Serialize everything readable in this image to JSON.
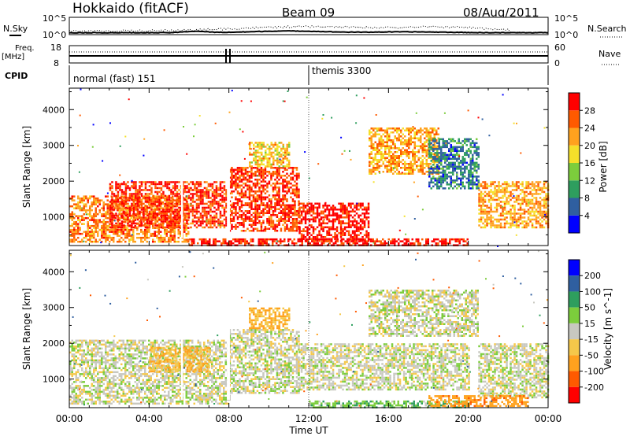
{
  "header": {
    "title": "Hokkaido (fitACF)",
    "beam": "Beam 09",
    "date": "08/Aug/2011"
  },
  "panels": {
    "nsky": {
      "left_label": "N.Sky",
      "right_label": "N.Search",
      "left_ticks": [
        "10^5",
        "10^0"
      ],
      "right_ticks": [
        "10^5",
        "10^0"
      ]
    },
    "freq": {
      "left_label_1": "Freq.",
      "left_label_2": "[MHz]",
      "right_label": "Nave",
      "left_ticks": [
        "18",
        "8"
      ],
      "right_ticks": [
        "60",
        "0"
      ]
    },
    "cpid": {
      "left_label": "CPID",
      "segments": [
        {
          "text": "normal (fast) 151",
          "start_h": 0.0
        },
        {
          "text": "themis 3300",
          "start_h": 12.0
        }
      ]
    }
  },
  "colors": {
    "power": [
      "#0000ff",
      "#2f5fa0",
      "#2e9e5e",
      "#7ccd3c",
      "#f5e02a",
      "#ffa21e",
      "#ff5a00",
      "#ff0000"
    ],
    "velocity": [
      "#ff0000",
      "#ff5a00",
      "#ffa21e",
      "#f5c84a",
      "#c8c8c0",
      "#7ccd3c",
      "#2e9e5e",
      "#2f5fa0",
      "#0000ff"
    ]
  },
  "chart_data": [
    {
      "type": "heatmap",
      "title": "Power",
      "xlabel": "",
      "ylabel": "Slant Range [km]",
      "xlim": [
        "00:00",
        "24:00"
      ],
      "ylim": [
        200,
        4600
      ],
      "yticks": [
        "1000",
        "2000",
        "3000",
        "4000"
      ],
      "colorbar": {
        "label": "Power [dB]",
        "ticks": [
          "4",
          "8",
          "12",
          "16",
          "20",
          "24",
          "28"
        ],
        "range": [
          0,
          32
        ]
      },
      "echo_regions": [
        {
          "t0": 0.0,
          "t1": 6.0,
          "r0": 300,
          "r1": 1600,
          "value": 24
        },
        {
          "t0": 2.0,
          "t1": 8.0,
          "r0": 700,
          "r1": 2000,
          "value": 28
        },
        {
          "t0": 8.0,
          "t1": 11.5,
          "r0": 600,
          "r1": 2400,
          "value": 28
        },
        {
          "t0": 9.0,
          "t1": 11.0,
          "r0": 2400,
          "r1": 3100,
          "value": 20
        },
        {
          "t0": 11.5,
          "t1": 15.0,
          "r0": 300,
          "r1": 1400,
          "value": 30
        },
        {
          "t0": 15.0,
          "t1": 18.5,
          "r0": 2200,
          "r1": 3500,
          "value": 22
        },
        {
          "t0": 18.0,
          "t1": 20.5,
          "r0": 1800,
          "r1": 3200,
          "value": 8
        },
        {
          "t0": 20.5,
          "t1": 24.0,
          "r0": 700,
          "r1": 2000,
          "value": 22
        },
        {
          "t0": 6.0,
          "t1": 20.0,
          "r0": 200,
          "r1": 400,
          "value": 30
        }
      ]
    },
    {
      "type": "heatmap",
      "title": "Velocity",
      "xlabel": "Time UT",
      "ylabel": "Slant Range [km]",
      "xlim": [
        "00:00",
        "24:00"
      ],
      "ylim": [
        200,
        4600
      ],
      "xticks": [
        "00:00",
        "04:00",
        "08:00",
        "12:00",
        "16:00",
        "20:00",
        "00:00"
      ],
      "yticks": [
        "1000",
        "2000",
        "3000",
        "4000"
      ],
      "colorbar": {
        "label": "Velocity [m s^-1]",
        "ticks": [
          "200",
          "100",
          "50",
          "15",
          "-15",
          "-50",
          "-100",
          "-200"
        ]
      },
      "echo_regions": [
        {
          "t0": 0.0,
          "t1": 8.0,
          "r0": 300,
          "r1": 2100,
          "value": 0
        },
        {
          "t0": 4.0,
          "t1": 7.0,
          "r0": 1200,
          "r1": 1900,
          "value": -50
        },
        {
          "t0": 8.0,
          "t1": 11.5,
          "r0": 600,
          "r1": 2400,
          "value": 0
        },
        {
          "t0": 9.0,
          "t1": 11.0,
          "r0": 2400,
          "r1": 3000,
          "value": -50
        },
        {
          "t0": 11.5,
          "t1": 20.0,
          "r0": 700,
          "r1": 2000,
          "value": 0
        },
        {
          "t0": 15.0,
          "t1": 20.5,
          "r0": 2200,
          "r1": 3500,
          "value": 0
        },
        {
          "t0": 20.5,
          "t1": 24.0,
          "r0": 500,
          "r1": 2000,
          "value": 0
        },
        {
          "t0": 12.0,
          "t1": 20.0,
          "r0": 200,
          "r1": 400,
          "value": 40
        },
        {
          "t0": 18.0,
          "t1": 23.0,
          "r0": 250,
          "r1": 550,
          "value": -80
        }
      ]
    }
  ]
}
